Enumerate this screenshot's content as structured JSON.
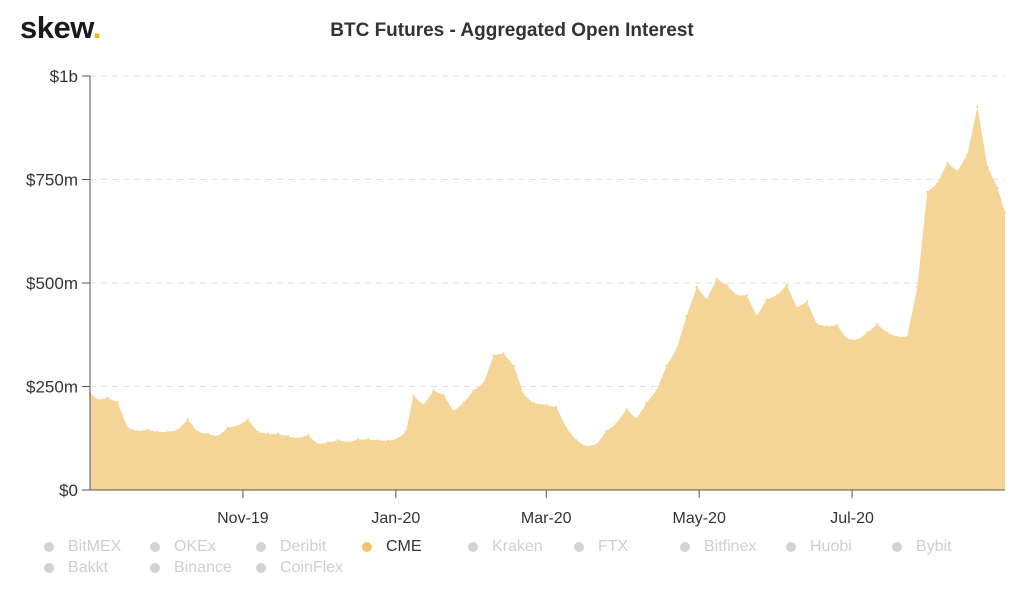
{
  "logo": {
    "text": "skew",
    "dot": "."
  },
  "chart_data": {
    "type": "area",
    "title": "BTC Futures - Aggregated Open Interest",
    "y_ticks": [
      "$0",
      "$250m",
      "$500m",
      "$750m",
      "$1b"
    ],
    "x_ticks": [
      "Nov-19",
      "Jan-20",
      "Mar-20",
      "May-20",
      "Jul-20"
    ],
    "ylim": [
      0,
      1000
    ],
    "y_unit": "USD millions",
    "grid": true,
    "fill_color": "#f5d498",
    "series": [
      {
        "name": "CME",
        "x": [
          "2019-09-01",
          "2019-09-04",
          "2019-09-08",
          "2019-09-12",
          "2019-09-16",
          "2019-09-20",
          "2019-09-24",
          "2019-09-28",
          "2019-10-02",
          "2019-10-06",
          "2019-10-10",
          "2019-10-14",
          "2019-10-18",
          "2019-10-22",
          "2019-10-26",
          "2019-10-30",
          "2019-11-03",
          "2019-11-07",
          "2019-11-11",
          "2019-11-15",
          "2019-11-19",
          "2019-11-23",
          "2019-11-27",
          "2019-12-01",
          "2019-12-05",
          "2019-12-09",
          "2019-12-13",
          "2019-12-17",
          "2019-12-21",
          "2019-12-25",
          "2019-12-29",
          "2020-01-02",
          "2020-01-05",
          "2020-01-08",
          "2020-01-12",
          "2020-01-16",
          "2020-01-20",
          "2020-01-24",
          "2020-01-28",
          "2020-02-01",
          "2020-02-05",
          "2020-02-09",
          "2020-02-13",
          "2020-02-17",
          "2020-02-21",
          "2020-02-25",
          "2020-03-01",
          "2020-03-05",
          "2020-03-09",
          "2020-03-13",
          "2020-03-17",
          "2020-03-21",
          "2020-03-25",
          "2020-03-29",
          "2020-04-02",
          "2020-04-06",
          "2020-04-10",
          "2020-04-14",
          "2020-04-18",
          "2020-04-22",
          "2020-04-26",
          "2020-04-30",
          "2020-05-04",
          "2020-05-08",
          "2020-05-12",
          "2020-05-16",
          "2020-05-20",
          "2020-05-24",
          "2020-05-28",
          "2020-06-01",
          "2020-06-05",
          "2020-06-09",
          "2020-06-13",
          "2020-06-17",
          "2020-06-21",
          "2020-06-25",
          "2020-06-29",
          "2020-07-03",
          "2020-07-07",
          "2020-07-11",
          "2020-07-15",
          "2020-07-19",
          "2020-07-23",
          "2020-07-27",
          "2020-07-31",
          "2020-08-04",
          "2020-08-08",
          "2020-08-12",
          "2020-08-16",
          "2020-08-20",
          "2020-08-24",
          "2020-08-28",
          "2020-08-31"
        ],
        "values": [
          235,
          218,
          222,
          212,
          150,
          142,
          145,
          140,
          140,
          145,
          170,
          140,
          135,
          130,
          150,
          155,
          170,
          140,
          135,
          135,
          130,
          125,
          132,
          110,
          115,
          120,
          115,
          122,
          122,
          120,
          118,
          125,
          140,
          228,
          205,
          240,
          230,
          190,
          210,
          240,
          258,
          325,
          330,
          300,
          230,
          210,
          205,
          200,
          150,
          120,
          105,
          110,
          142,
          160,
          195,
          172,
          210,
          240,
          300,
          340,
          420,
          490,
          460,
          510,
          495,
          470,
          470,
          420,
          460,
          470,
          495,
          440,
          455,
          400,
          395,
          398,
          365,
          362,
          380,
          400,
          380,
          370,
          370,
          490,
          720,
          740,
          790,
          770,
          810,
          925,
          780,
          730,
          670
        ]
      }
    ],
    "legend": [
      {
        "label": "BitMEX",
        "active": false
      },
      {
        "label": "OKEx",
        "active": false
      },
      {
        "label": "Deribit",
        "active": false
      },
      {
        "label": "CME",
        "active": true
      },
      {
        "label": "Kraken",
        "active": false
      },
      {
        "label": "FTX",
        "active": false
      },
      {
        "label": "Bitfinex",
        "active": false
      },
      {
        "label": "Huobi",
        "active": false
      },
      {
        "label": "Bybit",
        "active": false
      },
      {
        "label": "Bakkt",
        "active": false
      },
      {
        "label": "Binance",
        "active": false
      },
      {
        "label": "CoinFlex",
        "active": false
      }
    ]
  }
}
